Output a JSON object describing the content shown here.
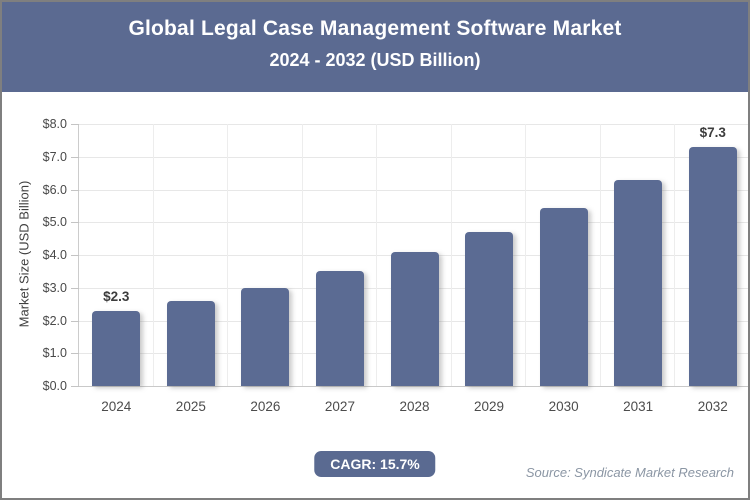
{
  "header": {
    "title_line1": "Global Legal Case Management Software Market",
    "title_line2": "2024 - 2032 (USD Billion)"
  },
  "chart_data": {
    "type": "bar",
    "title": "Global Legal Case Management Software Market 2024 - 2032 (USD Billion)",
    "categories": [
      "2024",
      "2025",
      "2026",
      "2027",
      "2028",
      "2029",
      "2030",
      "2031",
      "2032"
    ],
    "values": [
      2.3,
      2.6,
      3.0,
      3.5,
      4.1,
      4.7,
      5.45,
      6.3,
      7.3
    ],
    "data_labels": [
      "$2.3",
      "",
      "",
      "",
      "",
      "",
      "",
      "",
      "$7.3"
    ],
    "xlabel": "",
    "ylabel": "Market Size (USD Billion)",
    "ylim": [
      0,
      8
    ],
    "ytick_labels": [
      "$0.0",
      "$1.0",
      "$2.0",
      "$3.0",
      "$4.0",
      "$5.0",
      "$6.0",
      "$7.0",
      "$8.0"
    ],
    "grid": true,
    "legend_position": "none"
  },
  "footer": {
    "cagr_label": "CAGR: 15.7%",
    "source": "Source: Syndicate Market Research"
  },
  "colors": {
    "header_bg": "#5b6a91",
    "bar": "#5b6b93",
    "badge_bg": "#5a6a91",
    "frame_border": "#7f7f7f"
  }
}
